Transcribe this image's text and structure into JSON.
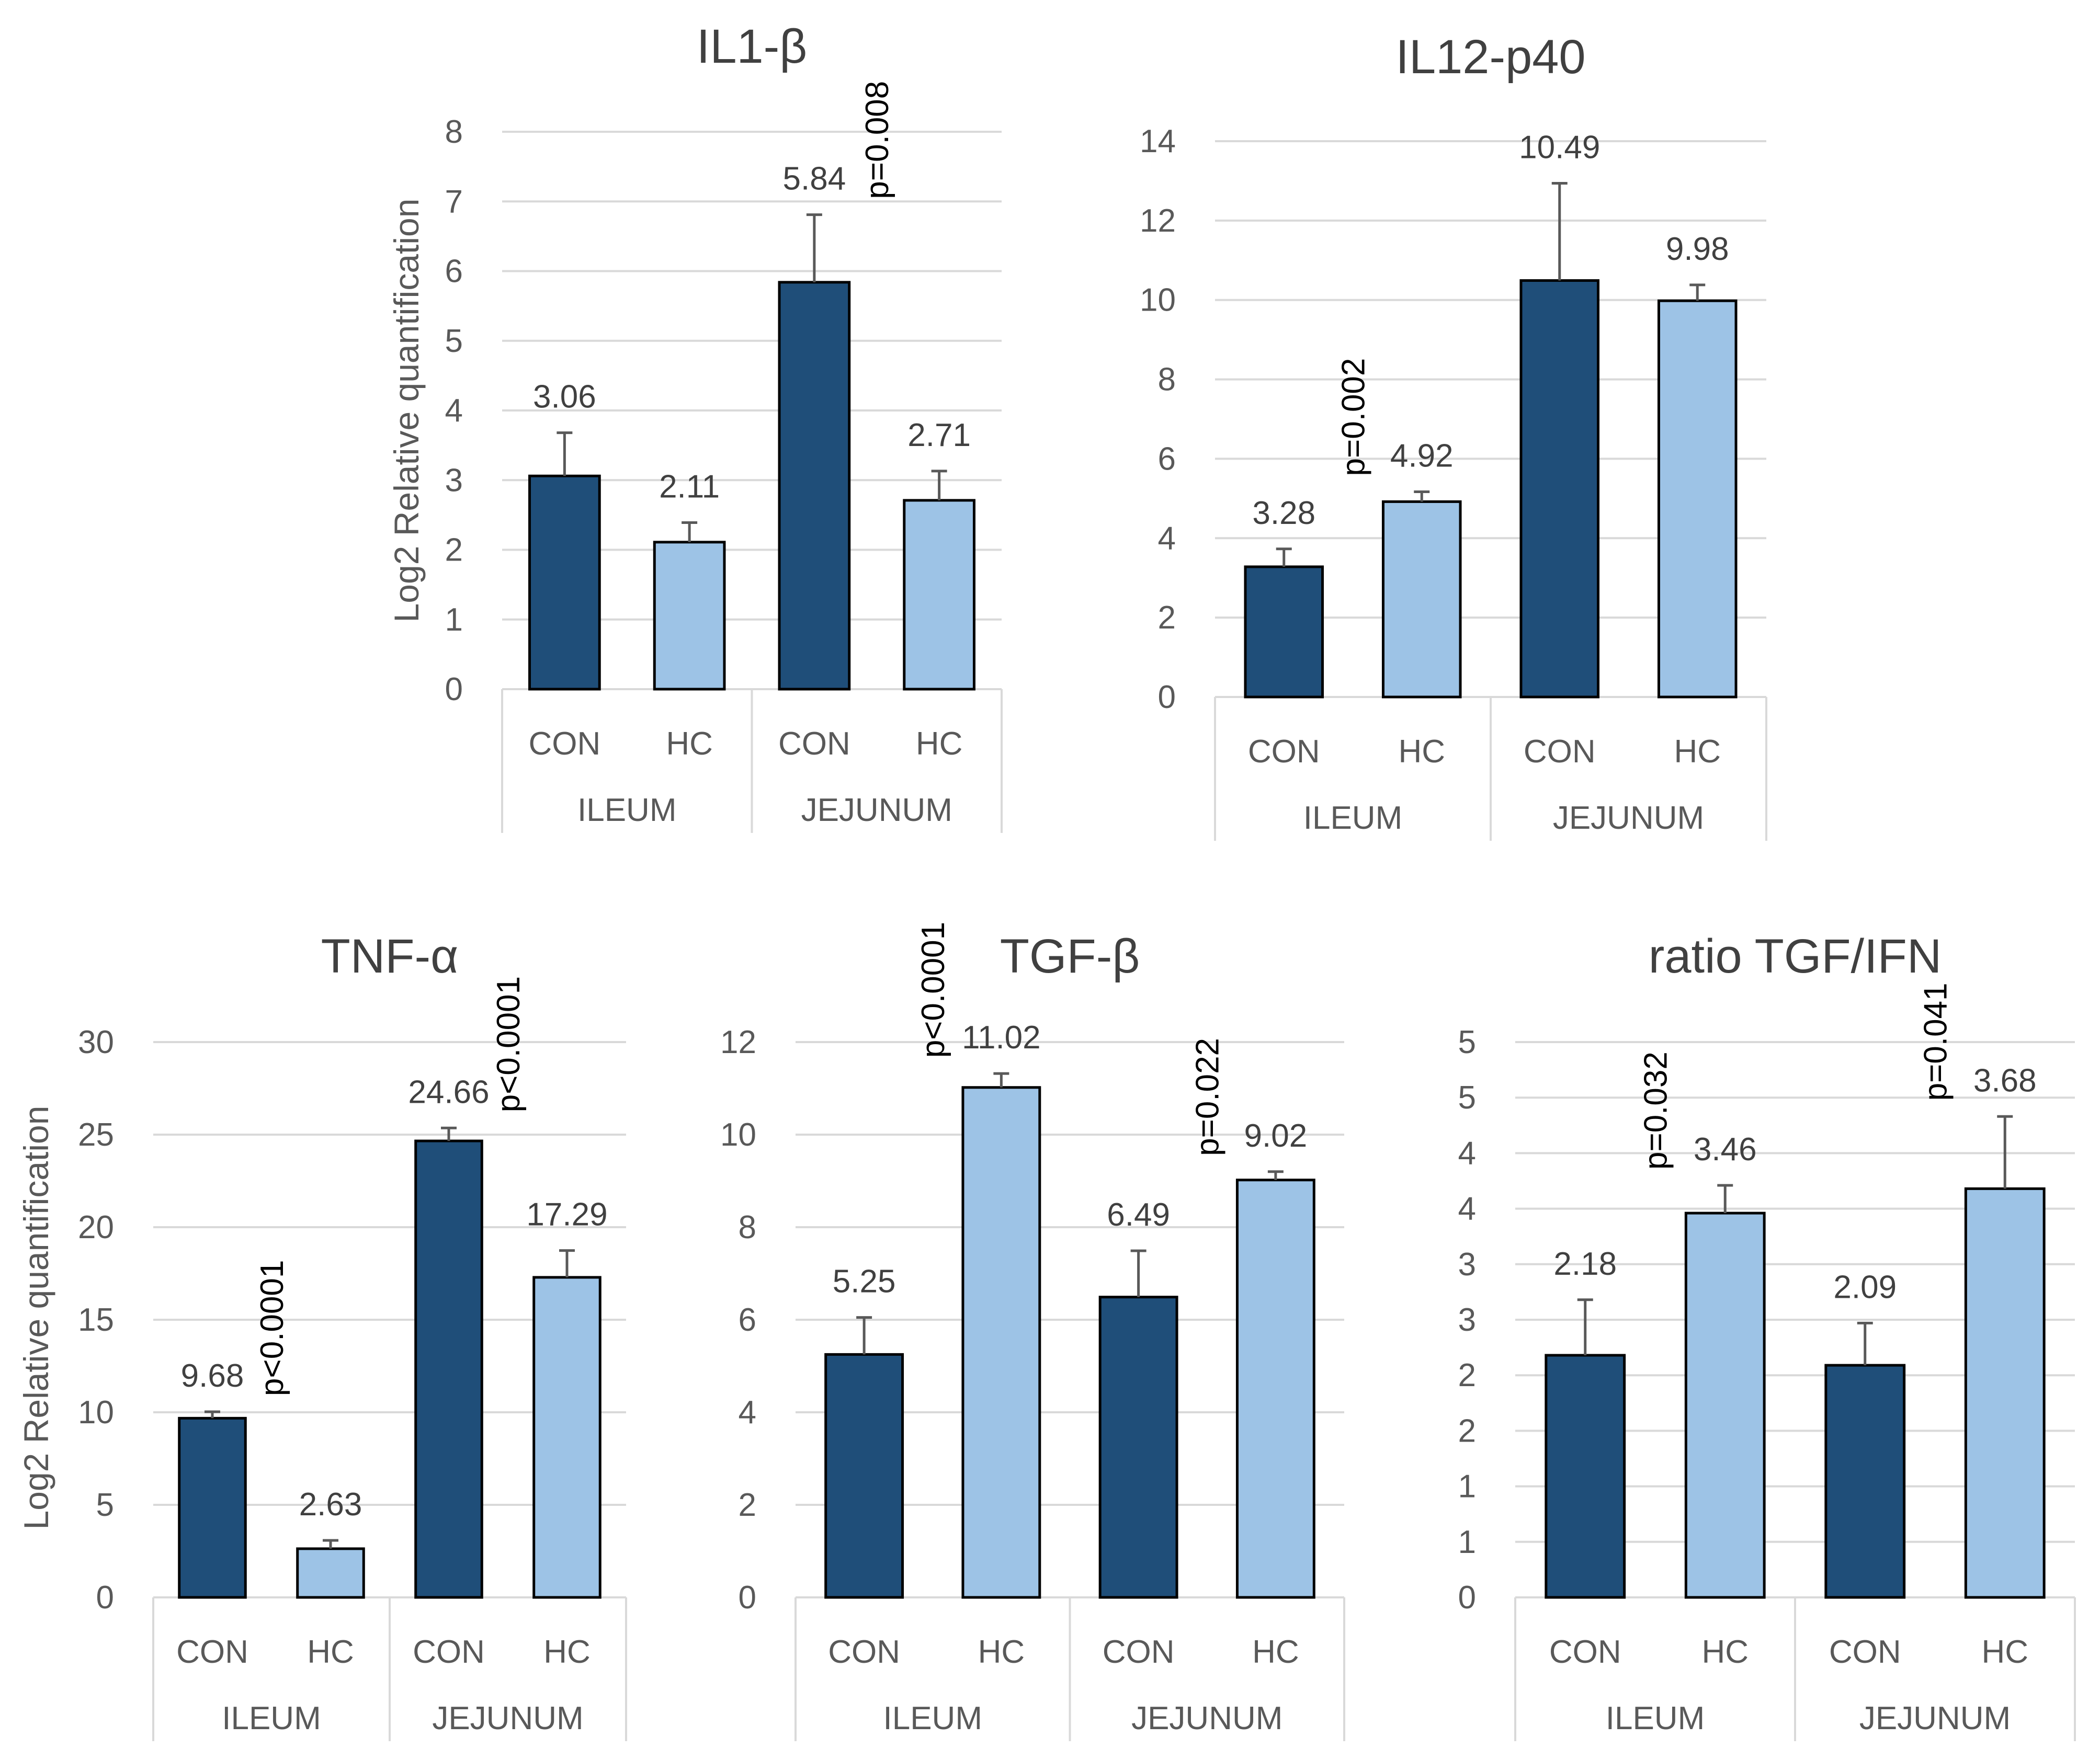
{
  "colors": {
    "con": "#1F4E79",
    "hc": "#9DC3E6",
    "grid": "#D9D9D9",
    "bar_edge": "#000000",
    "error": "#595959"
  },
  "chart_data": [
    {
      "id": "il1b",
      "type": "bar",
      "title": "IL1-β",
      "ylabel": "Log2 Relative quantification",
      "ylim": [
        0,
        8
      ],
      "yticks": [
        "0",
        "1",
        "2",
        "3",
        "4",
        "5",
        "6",
        "7",
        "8"
      ],
      "groups": [
        "ILEUM",
        "JEJUNUM"
      ],
      "categories": [
        "CON",
        "HC",
        "CON",
        "HC"
      ],
      "series_keys": [
        "con",
        "hc",
        "con",
        "hc"
      ],
      "values": [
        3.06,
        2.11,
        5.84,
        2.71
      ],
      "value_labels": [
        "3.06",
        "2.11",
        "5.84",
        "2.71"
      ],
      "errors": [
        0.62,
        0.28,
        0.97,
        0.42
      ],
      "annotations": [
        {
          "text": "p=0.008",
          "bar": 2
        }
      ]
    },
    {
      "id": "il12",
      "type": "bar",
      "title": "IL12-p40",
      "ylabel": "",
      "ylim": [
        0,
        14
      ],
      "yticks": [
        "0",
        "2",
        "4",
        "6",
        "8",
        "10",
        "12",
        "14"
      ],
      "groups": [
        "ILEUM",
        "JEJUNUM"
      ],
      "categories": [
        "CON",
        "HC",
        "CON",
        "HC"
      ],
      "series_keys": [
        "con",
        "hc",
        "con",
        "hc"
      ],
      "values": [
        3.28,
        4.92,
        10.49,
        9.98
      ],
      "value_labels": [
        "3.28",
        "4.92",
        "10.49",
        "9.98"
      ],
      "errors": [
        0.45,
        0.25,
        2.45,
        0.4
      ],
      "annotations": [
        {
          "text": "p=0.002",
          "bar": 0
        }
      ]
    },
    {
      "id": "tnfa",
      "type": "bar",
      "title": "TNF-α",
      "ylabel": "Log2 Relative quantification",
      "ylim": [
        0,
        30
      ],
      "yticks": [
        "0",
        "5",
        "10",
        "15",
        "20",
        "25",
        "30"
      ],
      "groups": [
        "ILEUM",
        "JEJUNUM"
      ],
      "categories": [
        "CON",
        "HC",
        "CON",
        "HC"
      ],
      "series_keys": [
        "con",
        "hc",
        "con",
        "hc"
      ],
      "values": [
        9.68,
        2.63,
        24.66,
        17.29
      ],
      "value_labels": [
        "9.68",
        "2.63",
        "24.66",
        "17.29"
      ],
      "errors": [
        0.35,
        0.45,
        0.7,
        1.45
      ],
      "annotations": [
        {
          "text": "p<0.0001",
          "bar": 0
        },
        {
          "text": "p<0.0001",
          "bar": 2
        }
      ]
    },
    {
      "id": "tgfb",
      "type": "bar",
      "title": "TGF-β",
      "ylabel": "",
      "ylim": [
        0,
        12
      ],
      "yticks": [
        "0",
        "2",
        "4",
        "6",
        "8",
        "10",
        "12"
      ],
      "groups": [
        "ILEUM",
        "JEJUNUM"
      ],
      "categories": [
        "CON",
        "HC",
        "CON",
        "HC"
      ],
      "series_keys": [
        "con",
        "hc",
        "con",
        "hc"
      ],
      "values": [
        5.25,
        11.02,
        6.49,
        9.02
      ],
      "value_labels": [
        "5.25",
        "11.02",
        "6.49",
        "9.02"
      ],
      "errors": [
        0.8,
        0.3,
        1.0,
        0.18
      ],
      "annotations": [
        {
          "text": "p<0.0001",
          "bar": 0
        },
        {
          "text": "p=0.022",
          "bar": 2
        }
      ]
    },
    {
      "id": "ratio",
      "type": "bar",
      "title": "ratio TGF/IFN",
      "ylabel": "",
      "ylim": [
        0,
        5
      ],
      "yticks": [
        "0",
        "1",
        "1",
        "2",
        "2",
        "3",
        "3",
        "4",
        "4",
        "5",
        "5"
      ],
      "groups": [
        "ILEUM",
        "JEJUNUM"
      ],
      "categories": [
        "CON",
        "HC",
        "CON",
        "HC"
      ],
      "series_keys": [
        "con",
        "hc",
        "con",
        "hc"
      ],
      "values": [
        2.18,
        3.46,
        2.09,
        3.68
      ],
      "value_labels": [
        "2.18",
        "3.46",
        "2.09",
        "3.68"
      ],
      "errors": [
        0.5,
        0.25,
        0.38,
        0.65
      ],
      "annotations": [
        {
          "text": "p=0.032",
          "bar": 0
        },
        {
          "text": "p=0.041",
          "bar": 2
        }
      ]
    }
  ]
}
